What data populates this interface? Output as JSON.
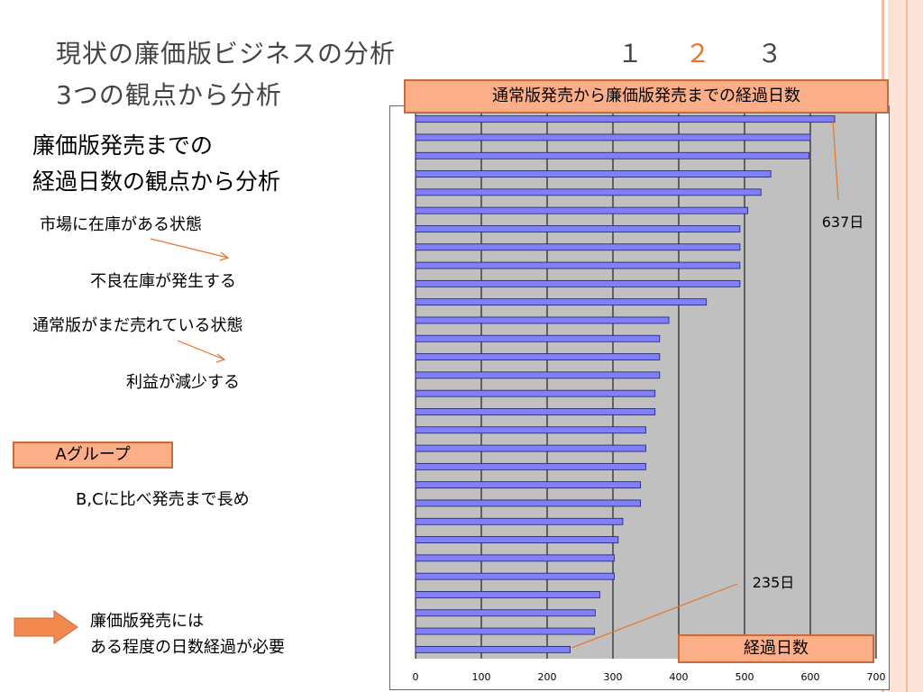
{
  "slide": {
    "title_line1": "現状の廉価版ビジネスの分析",
    "title_line2": "3つの観点から分析",
    "pages": [
      "１",
      "２",
      "３"
    ],
    "active_page_index": 1,
    "heading_line1": "廉価版発売までの",
    "heading_line2": "経過日数の観点から分析",
    "point1": "市場に在庫がある状態",
    "point1_result": "不良在庫が発生する",
    "point2": "通常版がまだ売れている状態",
    "point2_result": "利益が減少する",
    "group_label": "Aグループ",
    "group_note": "B,Cに比べ発売まで長め",
    "conclusion_line1": "廉価版発売には",
    "conclusion_line2": "ある程度の日数経過が必要",
    "accent_color": "#e8742a",
    "box_fill": "#fbae88"
  },
  "chart_data": {
    "type": "bar",
    "orientation": "horizontal",
    "title": "通常版発売から廉価版発売までの経過日数",
    "xlabel": "経過日数",
    "xlim": [
      0,
      700
    ],
    "xticks": [
      0,
      100,
      200,
      300,
      400,
      500,
      600,
      700
    ],
    "values": [
      637,
      600,
      598,
      540,
      525,
      505,
      493,
      493,
      493,
      493,
      442,
      385,
      371,
      371,
      371,
      364,
      364,
      350,
      350,
      350,
      342,
      342,
      315,
      308,
      302,
      302,
      280,
      273,
      272,
      235
    ],
    "bar_color": "#8080ff",
    "plot_background": "#c0c0c0",
    "annotation_max": "637日",
    "annotation_min": "235日"
  }
}
